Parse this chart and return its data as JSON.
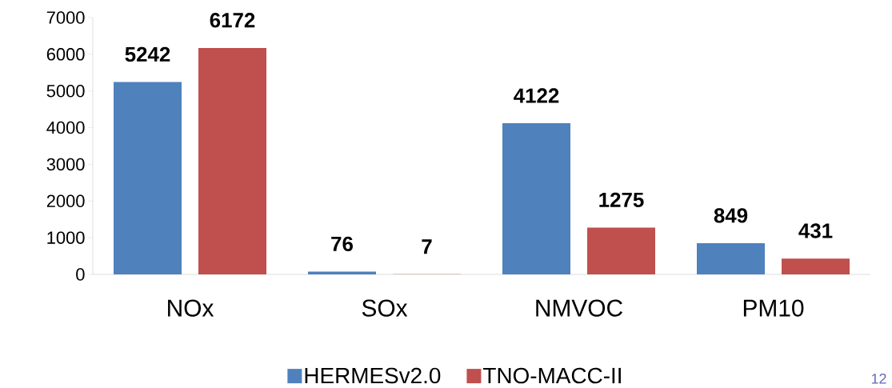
{
  "chart_data": {
    "type": "bar",
    "categories": [
      "NOx",
      "SOx",
      "NMVOC",
      "PM10"
    ],
    "series": [
      {
        "name": "HERMESv2.0",
        "color": "#4f81bd",
        "values": [
          5242,
          76,
          4122,
          849
        ]
      },
      {
        "name": "TNO-MACC-II",
        "color": "#c0504d",
        "values": [
          6172,
          7,
          1275,
          431
        ]
      }
    ],
    "ylim": [
      0,
      7000
    ],
    "yticks": [
      0,
      1000,
      2000,
      3000,
      4000,
      5000,
      6000,
      7000
    ],
    "data_labels": true,
    "legend": "bottom",
    "annotations": [
      "12"
    ]
  }
}
